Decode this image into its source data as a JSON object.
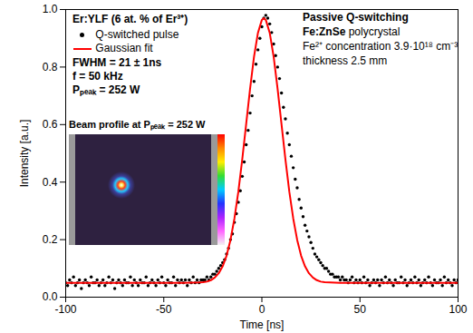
{
  "chart_data": {
    "type": "scatter",
    "title": "Er:YLF  (6 at. % of Er³⁺)",
    "x_label": "Time [ns]",
    "y_label": "Intensity [a.u.]",
    "xlim": [
      -100,
      100
    ],
    "ylim": [
      0,
      1.0
    ],
    "xticks": [
      -100,
      -50,
      0,
      50,
      100
    ],
    "yticks": [
      {
        "value": 0,
        "label": "0.0"
      },
      {
        "value": 0.2,
        "label": "0.2"
      },
      {
        "value": 0.4,
        "label": "0.4"
      },
      {
        "value": 0.6,
        "label": "0.6"
      },
      {
        "value": 0.8,
        "label": "0.8"
      },
      {
        "value": 1.0,
        "label": "1.0"
      }
    ],
    "legend": "top-left",
    "annotations": [
      "FWHM = 21 ± 1ns",
      "f = 50 kHz",
      "Pₚₑₐₖ = 252 W"
    ],
    "inset_title": "Beam profile at Pₚₑₐₖ = 252 W",
    "annotations_right": [
      "Passive Q-switching",
      "Fe:ZnSe polycrystal",
      "Fe²⁺ concentration 3.9·10¹⁸ cm⁻³",
      "thickness 2.5 mm"
    ],
    "series": [
      {
        "name": "Q-switched pulse",
        "type": "scatter",
        "marker": "circle",
        "color": "#000000",
        "x": [
          -100,
          -99,
          -98,
          -97,
          -96,
          -95,
          -94,
          -93,
          -92,
          -91,
          -90,
          -89,
          -88,
          -87,
          -86,
          -85,
          -84,
          -83,
          -82,
          -81,
          -80,
          -79,
          -78,
          -77,
          -76,
          -75,
          -74,
          -73,
          -72,
          -71,
          -70,
          -69,
          -68,
          -67,
          -66,
          -65,
          -64,
          -63,
          -62,
          -61,
          -60,
          -59,
          -58,
          -57,
          -56,
          -55,
          -54,
          -53,
          -52,
          -51,
          -50,
          -49,
          -48,
          -47,
          -46,
          -45,
          -44,
          -43,
          -42,
          -41,
          -40,
          -39,
          -38,
          -37,
          -36,
          -35,
          -34,
          -33,
          -32,
          -31,
          -30,
          -29,
          -28,
          -27,
          -26,
          -25,
          -24,
          -23,
          -22,
          -21,
          -20,
          -19,
          -18,
          -17,
          -16,
          -15,
          -14,
          -13,
          -12,
          -11,
          -10,
          -9,
          -8,
          -7,
          -6,
          -5,
          -4,
          -3,
          -2,
          -1,
          0,
          1,
          2,
          3,
          4,
          5,
          6,
          7,
          8,
          9,
          10,
          11,
          12,
          13,
          14,
          15,
          16,
          17,
          18,
          19,
          20,
          21,
          22,
          23,
          24,
          25,
          26,
          27,
          28,
          29,
          30,
          31,
          32,
          33,
          34,
          35,
          36,
          37,
          38,
          39,
          40,
          41,
          42,
          43,
          44,
          45,
          46,
          47,
          48,
          49,
          50,
          51,
          52,
          53,
          54,
          55,
          56,
          57,
          58,
          59,
          60,
          61,
          62,
          63,
          64,
          65,
          66,
          67,
          68,
          69,
          70,
          71,
          72,
          73,
          74,
          75,
          76,
          77,
          78,
          79,
          80,
          81,
          82,
          83,
          84,
          85,
          86,
          87,
          88,
          89,
          90,
          91,
          92,
          93,
          94,
          95,
          96,
          97,
          98,
          99,
          100
        ],
        "values": [
          0.05,
          0.04,
          0.06,
          0.05,
          0.07,
          0.04,
          0.05,
          0.06,
          0.03,
          0.05,
          0.06,
          0.05,
          0.04,
          0.07,
          0.05,
          0.05,
          0.06,
          0.04,
          0.05,
          0.06,
          0.04,
          0.05,
          0.07,
          0.05,
          0.06,
          0.03,
          0.05,
          0.06,
          0.05,
          0.04,
          0.06,
          0.05,
          0.05,
          0.07,
          0.04,
          0.06,
          0.05,
          0.04,
          0.06,
          0.05,
          0.05,
          0.07,
          0.04,
          0.05,
          0.06,
          0.05,
          0.04,
          0.06,
          0.05,
          0.07,
          0.05,
          0.04,
          0.06,
          0.05,
          0.05,
          0.07,
          0.04,
          0.06,
          0.05,
          0.06,
          0.05,
          0.06,
          0.04,
          0.06,
          0.05,
          0.07,
          0.05,
          0.06,
          0.05,
          0.06,
          0.06,
          0.06,
          0.07,
          0.06,
          0.07,
          0.08,
          0.08,
          0.09,
          0.1,
          0.11,
          0.12,
          0.13,
          0.15,
          0.17,
          0.2,
          0.22,
          0.26,
          0.29,
          0.33,
          0.37,
          0.42,
          0.47,
          0.53,
          0.58,
          0.64,
          0.7,
          0.75,
          0.81,
          0.86,
          0.9,
          0.94,
          0.97,
          0.98,
          0.97,
          0.95,
          0.92,
          0.88,
          0.84,
          0.8,
          0.76,
          0.71,
          0.66,
          0.62,
          0.57,
          0.53,
          0.49,
          0.45,
          0.41,
          0.38,
          0.34,
          0.31,
          0.28,
          0.25,
          0.23,
          0.21,
          0.19,
          0.17,
          0.15,
          0.14,
          0.13,
          0.12,
          0.11,
          0.1,
          0.1,
          0.09,
          0.08,
          0.08,
          0.07,
          0.07,
          0.07,
          0.06,
          0.07,
          0.06,
          0.06,
          0.05,
          0.06,
          0.07,
          0.05,
          0.06,
          0.05,
          0.06,
          0.05,
          0.07,
          0.05,
          0.06,
          0.04,
          0.05,
          0.06,
          0.05,
          0.06,
          0.04,
          0.06,
          0.05,
          0.07,
          0.05,
          0.06,
          0.05,
          0.04,
          0.06,
          0.05,
          0.05,
          0.07,
          0.05,
          0.06,
          0.04,
          0.05,
          0.06,
          0.05,
          0.07,
          0.05,
          0.06,
          0.04,
          0.05,
          0.06,
          0.05,
          0.07,
          0.05,
          0.04,
          0.06,
          0.05,
          0.05,
          0.06,
          0.04,
          0.07,
          0.05,
          0.06,
          0.05,
          0.04,
          0.06,
          0.05,
          0.06
        ]
      },
      {
        "name": "Gaussian fit",
        "type": "line",
        "line_style": "solid",
        "color": "#ff0000",
        "x": [
          -100,
          -40,
          -32,
          -30,
          -28,
          -26,
          -24,
          -22,
          -20,
          -18,
          -16,
          -14,
          -12,
          -10,
          -8,
          -6,
          -4,
          -2,
          0,
          1,
          2,
          4,
          6,
          8,
          10,
          12,
          14,
          16,
          18,
          20,
          22,
          24,
          26,
          28,
          30,
          32,
          40,
          100
        ],
        "values": [
          0.05,
          0.05,
          0.051,
          0.052,
          0.054,
          0.059,
          0.068,
          0.083,
          0.107,
          0.144,
          0.199,
          0.273,
          0.366,
          0.479,
          0.602,
          0.725,
          0.836,
          0.919,
          0.964,
          0.97,
          0.964,
          0.919,
          0.836,
          0.725,
          0.602,
          0.479,
          0.366,
          0.273,
          0.199,
          0.144,
          0.107,
          0.083,
          0.068,
          0.059,
          0.054,
          0.052,
          0.05,
          0.05
        ]
      }
    ]
  }
}
